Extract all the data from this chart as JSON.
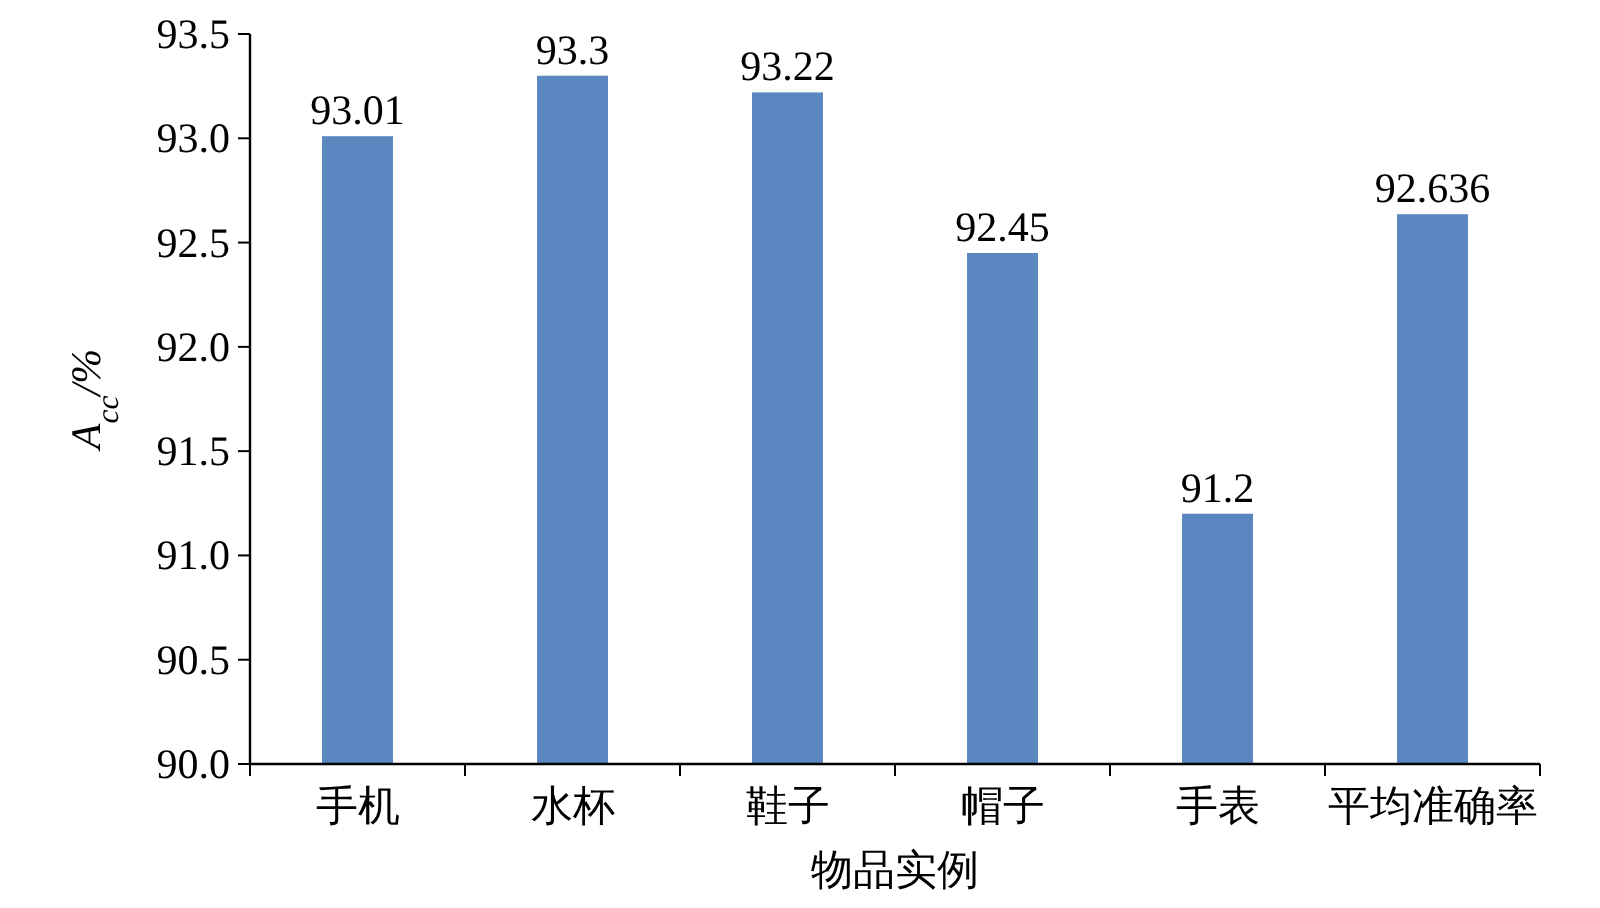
{
  "chart_data": {
    "type": "bar",
    "xlabel": "物品实例",
    "ylabel": "A$_{cc}$/%",
    "categories": [
      "手机",
      "水杯",
      "鞋子",
      "帽子",
      "手表",
      "平均准确率"
    ],
    "values": [
      93.01,
      93.3,
      93.22,
      92.45,
      91.2,
      92.636
    ],
    "color": "#5b87c0",
    "ylim": [
      90,
      93.5
    ],
    "yticks": [
      {
        "value": 90,
        "label": "90.0"
      },
      {
        "value": 90.5,
        "label": "90.5"
      },
      {
        "value": 91,
        "label": "91.0"
      },
      {
        "value": 91.5,
        "label": "91.5"
      },
      {
        "value": 92,
        "label": "92.0"
      },
      {
        "value": 92.5,
        "label": "92.5"
      },
      {
        "value": 93,
        "label": "93.0"
      },
      {
        "value": 93.5,
        "label": "93.5"
      }
    ],
    "data_labels": true
  }
}
